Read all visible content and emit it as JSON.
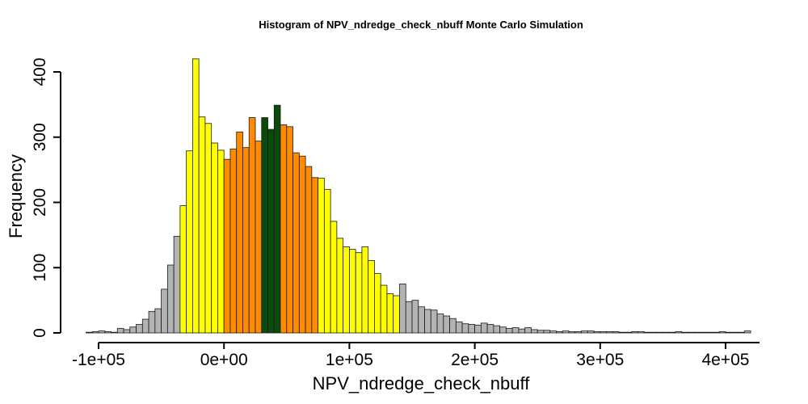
{
  "chart_data": {
    "type": "bar",
    "title": "Histogram of  NPV_ndredge_check_nbuff  Monte Carlo Simulation",
    "xlabel": "NPV_ndredge_check_nbuff",
    "ylabel": "Frequency",
    "xlim": [
      -110000,
      425000
    ],
    "ylim": [
      0,
      430
    ],
    "bin_start": -110000,
    "bin_width": 5000,
    "x_ticks": [
      -100000,
      0,
      100000,
      200000,
      300000,
      400000
    ],
    "x_tick_labels": [
      "-1e+05",
      "0e+00",
      "1e+05",
      "2e+05",
      "3e+05",
      "4e+05"
    ],
    "y_ticks": [
      0,
      100,
      200,
      300,
      400
    ],
    "y_tick_labels": [
      "0",
      "100",
      "200",
      "300",
      "400"
    ],
    "colors": {
      "tail": "#b3b3b3",
      "outer": "#ffff00",
      "inner": "#ff8c00",
      "center": "#0a4a0a"
    },
    "values": [
      1,
      2,
      3,
      2,
      1,
      7,
      5,
      9,
      13,
      21,
      33,
      37,
      67,
      104,
      148,
      195,
      279,
      420,
      331,
      321,
      291,
      280,
      266,
      282,
      308,
      284,
      330,
      294,
      330,
      312,
      349,
      319,
      316,
      276,
      271,
      255,
      238,
      237,
      220,
      171,
      145,
      132,
      128,
      123,
      132,
      111,
      91,
      73,
      60,
      57,
      75,
      48,
      50,
      40,
      36,
      35,
      29,
      26,
      22,
      17,
      14,
      13,
      12,
      15,
      13,
      11,
      9,
      7,
      8,
      6,
      8,
      5,
      4,
      4,
      3,
      2,
      3,
      2,
      2,
      3,
      3,
      2,
      2,
      2,
      2,
      1,
      1,
      2,
      2,
      1,
      1,
      1,
      1,
      1,
      2,
      1,
      1,
      1,
      1,
      1,
      1,
      2,
      1,
      1,
      1,
      3
    ],
    "zones": [
      "tail",
      "tail",
      "tail",
      "tail",
      "tail",
      "tail",
      "tail",
      "tail",
      "tail",
      "tail",
      "tail",
      "tail",
      "tail",
      "tail",
      "tail",
      "outer",
      "outer",
      "outer",
      "outer",
      "outer",
      "outer",
      "outer",
      "inner",
      "inner",
      "inner",
      "inner",
      "inner",
      "inner",
      "center",
      "center",
      "center",
      "inner",
      "inner",
      "inner",
      "inner",
      "inner",
      "inner",
      "outer",
      "outer",
      "outer",
      "outer",
      "outer",
      "outer",
      "outer",
      "outer",
      "outer",
      "outer",
      "outer",
      "outer",
      "outer",
      "tail",
      "tail",
      "tail",
      "tail",
      "tail",
      "tail",
      "tail",
      "tail",
      "tail",
      "tail",
      "tail",
      "tail",
      "tail",
      "tail",
      "tail",
      "tail",
      "tail",
      "tail",
      "tail",
      "tail",
      "tail",
      "tail",
      "tail",
      "tail",
      "tail",
      "tail",
      "tail",
      "tail",
      "tail",
      "tail",
      "tail",
      "tail",
      "tail",
      "tail",
      "tail",
      "tail",
      "tail",
      "tail",
      "tail",
      "tail",
      "tail",
      "tail",
      "tail",
      "tail",
      "tail",
      "tail",
      "tail",
      "tail",
      "tail",
      "tail",
      "tail",
      "tail",
      "tail",
      "tail",
      "tail",
      "tail",
      "tail"
    ]
  }
}
